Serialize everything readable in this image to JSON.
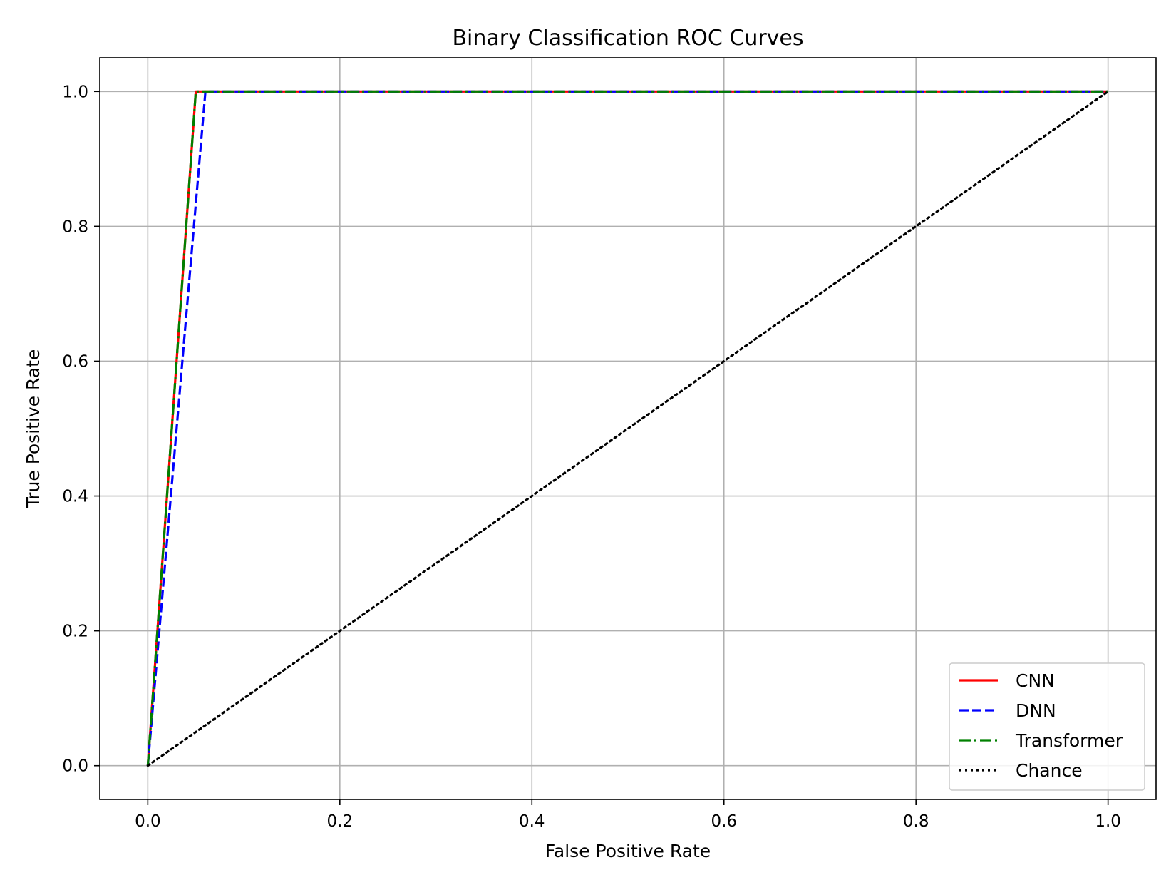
{
  "chart_data": {
    "type": "line",
    "title": "Binary Classification ROC Curves",
    "xlabel": "False Positive Rate",
    "ylabel": "True Positive Rate",
    "xlim": [
      -0.05,
      1.05
    ],
    "ylim": [
      -0.05,
      1.05
    ],
    "xticks": [
      "0.0",
      "0.2",
      "0.4",
      "0.6",
      "0.8",
      "1.0"
    ],
    "yticks": [
      "0.0",
      "0.2",
      "0.4",
      "0.6",
      "0.8",
      "1.0"
    ],
    "grid": true,
    "legend_position": "lower right",
    "series": [
      {
        "name": "CNN",
        "color": "#ff0000",
        "style": "solid",
        "x": [
          0.0,
          0.05,
          1.0
        ],
        "y": [
          0.0,
          1.0,
          1.0
        ]
      },
      {
        "name": "DNN",
        "color": "#0000ff",
        "style": "dashed",
        "x": [
          0.0,
          0.06,
          1.0
        ],
        "y": [
          0.0,
          1.0,
          1.0
        ]
      },
      {
        "name": "Transformer",
        "color": "#008000",
        "style": "dashdot",
        "x": [
          0.0,
          0.05,
          1.0
        ],
        "y": [
          0.0,
          1.0,
          1.0
        ]
      },
      {
        "name": "Chance",
        "color": "#000000",
        "style": "dotted",
        "x": [
          0.0,
          1.0
        ],
        "y": [
          0.0,
          1.0
        ]
      }
    ]
  }
}
